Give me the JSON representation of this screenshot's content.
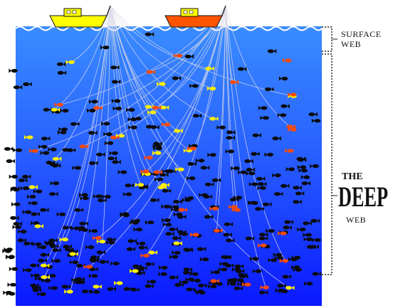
{
  "labels": {
    "surface_line1": "SURFACE",
    "surface_line2": "WEB",
    "deep_the": "THE",
    "deep_main": "DEEP",
    "deep_web": "WEB"
  },
  "colors": {
    "sky": "#ffffff",
    "water_top": "#2f7fff",
    "water_mid": "#1c4fff",
    "water_bottom": "#0a1dff",
    "boat_left": "#ffff00",
    "boat_right": "#ff5500",
    "fish_dark": "#0b0b0b",
    "fish_yellow": "#ffef00",
    "fish_orange": "#ff4a00",
    "net_line": "#d9d9e8",
    "bracket": "#222222"
  },
  "icons": [
    "fishing-boat-icon",
    "fish-icon",
    "wave-icon",
    "bracket-icon"
  ]
}
